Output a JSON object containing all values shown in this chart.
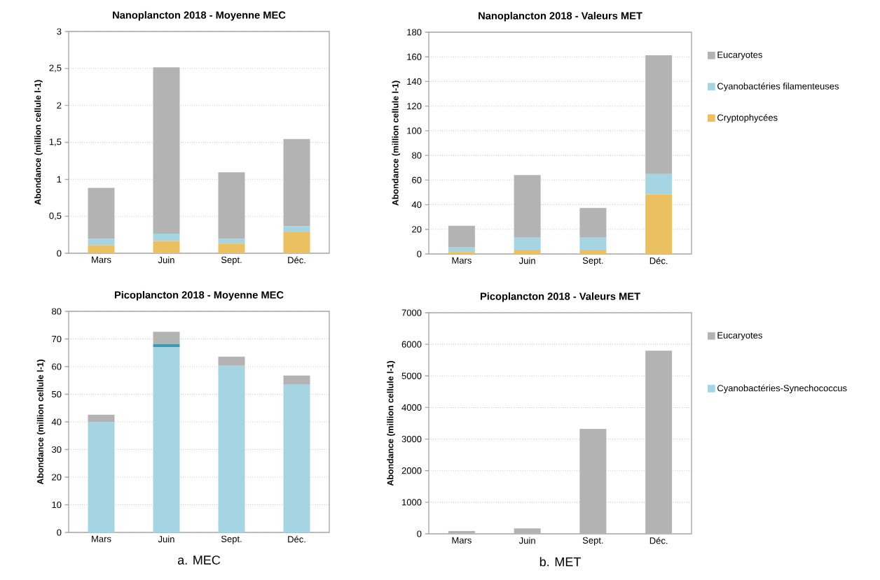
{
  "chart_data": [
    {
      "type": "bar",
      "title": "Nanoplancton 2018 - Moyenne MEC",
      "ylabel": "Abondance (million cellule l-1)",
      "categories": [
        "Mars",
        "Juin",
        "Sept.",
        "Déc."
      ],
      "stacked": true,
      "grid": "y",
      "ylim": [
        0,
        3
      ],
      "yticks": [
        0,
        {
          "value": 0.5,
          "label": "0,5"
        },
        1,
        {
          "value": 1.5,
          "label": "1,5"
        },
        2,
        {
          "value": 2.5,
          "label": "2,5"
        },
        3
      ],
      "series": [
        {
          "color": "#ebc060",
          "values": [
            0.11,
            0.165,
            0.13,
            0.285
          ]
        },
        {
          "color": "#a5d5e3",
          "values": [
            0.085,
            0.1,
            0.065,
            0.08
          ]
        },
        {
          "color": "#b3b3b3",
          "values": [
            0.69,
            2.25,
            0.9,
            1.18
          ]
        }
      ]
    },
    {
      "type": "bar",
      "title": "Nanoplancton 2018 -  Valeurs MET",
      "ylabel": "Abondance (million cellule l-1)",
      "categories": [
        "Mars",
        "Juin",
        "Sept.",
        "Déc."
      ],
      "stacked": true,
      "grid": "y",
      "legend": "right",
      "ylim": [
        0,
        180
      ],
      "yticks": [
        0,
        20,
        40,
        60,
        80,
        100,
        120,
        140,
        160,
        180
      ],
      "series": [
        {
          "name": "Cryptophycées",
          "color": "#ebc060",
          "values": [
            1.5,
            3.4,
            3.4,
            48.6
          ]
        },
        {
          "name": "Cyanobactéries filamenteuses",
          "color": "#a5d5e3",
          "values": [
            4.2,
            10.2,
            10.2,
            16.3
          ]
        },
        {
          "name": "Eucaryotes",
          "color": "#b3b3b3",
          "values": [
            17.2,
            50.4,
            23.7,
            96.4
          ]
        }
      ]
    },
    {
      "type": "bar",
      "title": "Picoplancton 2018 - Moyenne MEC",
      "ylabel": "Abondance (million cellule l-1)",
      "categories": [
        "Mars",
        "Juin",
        "Sept.",
        "Déc."
      ],
      "stacked": true,
      "grid": "y",
      "ylim": [
        0,
        80
      ],
      "yticks": [
        0,
        10,
        20,
        30,
        40,
        50,
        60,
        70,
        80
      ],
      "annotations": [
        "a. MEC"
      ],
      "series": [
        {
          "color": "#a5d5e3",
          "values": [
            39.9,
            67.1,
            60.3,
            53.5
          ]
        },
        {
          "color": "#3a9bb0",
          "values": [
            null,
            1.0,
            null,
            null
          ]
        },
        {
          "color": "#b3b3b3",
          "values": [
            2.7,
            4.5,
            3.3,
            3.3
          ]
        }
      ]
    },
    {
      "type": "bar",
      "title": "Picoplancton 2018 - Valeurs MET",
      "ylabel": "Abondance (million cellule l-1)",
      "categories": [
        "Mars",
        "Juin",
        "Sept.",
        "Déc."
      ],
      "stacked": true,
      "grid": "y",
      "legend": "right",
      "ylim": [
        0,
        7000
      ],
      "yticks": [
        0,
        1000,
        2000,
        3000,
        4000,
        5000,
        6000,
        7000
      ],
      "annotations": [
        "b. MET"
      ],
      "series": [
        {
          "name": "Cyanobactéries-Synechococcus",
          "color": "#a5d5e3",
          "values": [
            null,
            null,
            null,
            null
          ]
        },
        {
          "name": "Eucaryotes",
          "color": "#b3b3b3",
          "values": [
            88,
            170,
            3324,
            5800
          ]
        }
      ]
    }
  ]
}
